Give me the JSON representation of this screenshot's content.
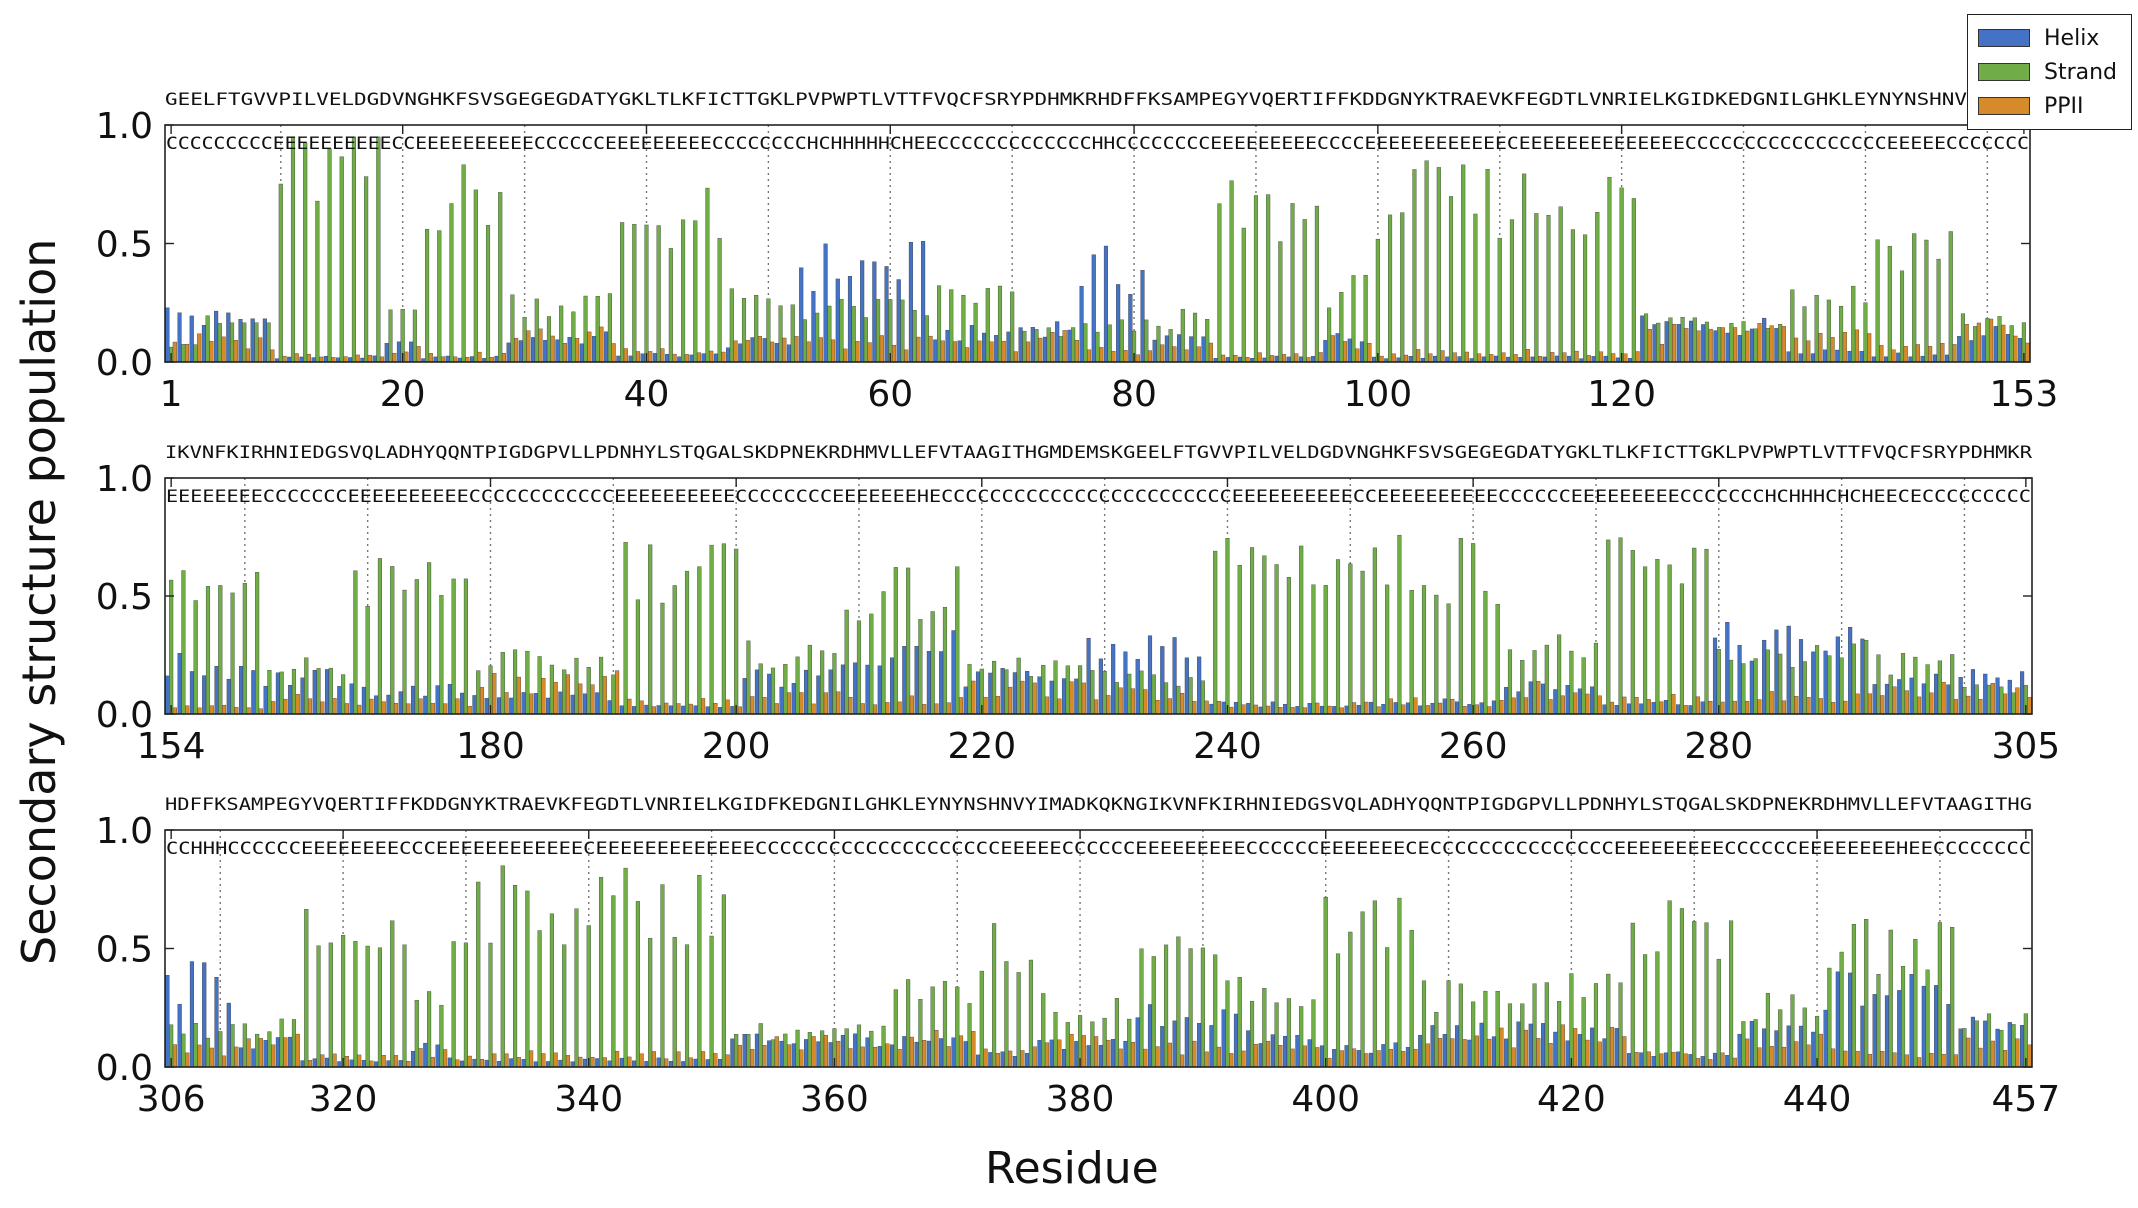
{
  "chart_data": {
    "type": "bar",
    "ylabel": "Secondary structure population",
    "xlabel": "Residue",
    "ylim": [
      0,
      1.0
    ],
    "yticks": [
      "0.0",
      "0.5",
      "1.0"
    ],
    "legend": {
      "placement": "top-right",
      "entries": [
        "Helix",
        "Strand",
        "PPII"
      ]
    },
    "colors": {
      "Helix": "#4472c4",
      "Strand": "#70ad47",
      "PPII": "#d68a2a"
    },
    "panels": [
      {
        "start": 1,
        "end": 153,
        "xticks": [
          "1",
          "20",
          "40",
          "60",
          "80",
          "100",
          "120",
          "153"
        ],
        "xtick_values": [
          1,
          20,
          40,
          60,
          80,
          100,
          120,
          153
        ],
        "sequence": "GEELFTGVVPILVELDGDVNGHKFSVSGEGEGDATYGKLTLKFICTTGKLPVPWPTLVTTFVQCFSRYPDHMKRHDFFKSAMPEGYVQERTIFFKDDGNYKTRAEVKFEGDTLVNRIELKGIDKEDGNILGHKLEYNYNSHNVYIMAD",
        "ss": "CCCCCCCCCEEEEEEEEEECCEEEEEEEEEECCCCCCEEEEEEEEECCCCCCCCHCHHHHHCHEECCCCCCCCCCCCCHHCCCCCCCCEEEEEEEEECCCCEEEEEEEEEEEECEEEEEEEEEEEEEECCCCCCCCCCCCCCCCCEEEEECCCCCCC",
        "segments": [
          {
            "s": 1,
            "e": 3,
            "type": "C",
            "h": 0.2,
            "st": 0.08,
            "pp": 0.09
          },
          {
            "s": 4,
            "e": 9,
            "type": "C",
            "h": 0.18,
            "st": 0.16,
            "pp": 0.08
          },
          {
            "s": 10,
            "e": 18,
            "type": "E",
            "h": 0.02,
            "st": 0.8,
            "pp": 0.03
          },
          {
            "s": 19,
            "e": 21,
            "type": "C",
            "h": 0.07,
            "st": 0.22,
            "pp": 0.06
          },
          {
            "s": 22,
            "e": 28,
            "type": "E",
            "h": 0.02,
            "st": 0.7,
            "pp": 0.03
          },
          {
            "s": 29,
            "e": 37,
            "type": "C",
            "h": 0.1,
            "st": 0.25,
            "pp": 0.11
          },
          {
            "s": 38,
            "e": 46,
            "type": "E",
            "h": 0.03,
            "st": 0.6,
            "pp": 0.05
          },
          {
            "s": 47,
            "e": 52,
            "type": "C",
            "h": 0.08,
            "st": 0.25,
            "pp": 0.1
          },
          {
            "s": 53,
            "e": 63,
            "type": "H",
            "h": 0.4,
            "st": 0.22,
            "pp": 0.08
          },
          {
            "s": 64,
            "e": 70,
            "type": "C",
            "h": 0.12,
            "st": 0.28,
            "pp": 0.07
          },
          {
            "s": 71,
            "e": 75,
            "type": "C",
            "h": 0.15,
            "st": 0.12,
            "pp": 0.1
          },
          {
            "s": 76,
            "e": 81,
            "type": "H",
            "h": 0.38,
            "st": 0.15,
            "pp": 0.05
          },
          {
            "s": 82,
            "e": 86,
            "type": "C",
            "h": 0.1,
            "st": 0.18,
            "pp": 0.06
          },
          {
            "s": 87,
            "e": 95,
            "type": "E",
            "h": 0.02,
            "st": 0.62,
            "pp": 0.03
          },
          {
            "s": 96,
            "e": 99,
            "type": "C",
            "h": 0.1,
            "st": 0.3,
            "pp": 0.08
          },
          {
            "s": 100,
            "e": 121,
            "type": "E",
            "h": 0.02,
            "st": 0.68,
            "pp": 0.04
          },
          {
            "s": 122,
            "e": 133,
            "type": "C",
            "h": 0.15,
            "st": 0.18,
            "pp": 0.12
          },
          {
            "s": 134,
            "e": 140,
            "type": "C",
            "h": 0.05,
            "st": 0.28,
            "pp": 0.1
          },
          {
            "s": 141,
            "e": 147,
            "type": "E",
            "h": 0.03,
            "st": 0.5,
            "pp": 0.06
          },
          {
            "s": 148,
            "e": 153,
            "type": "C",
            "h": 0.12,
            "st": 0.18,
            "pp": 0.13
          }
        ]
      },
      {
        "start": 154,
        "end": 305,
        "xticks": [
          "154",
          "180",
          "200",
          "220",
          "240",
          "260",
          "280",
          "305"
        ],
        "xtick_values": [
          154,
          180,
          200,
          220,
          240,
          260,
          280,
          305
        ],
        "sequence": "IKVNFKIRHNIEDGSVQLADHYQQNTPIGDGPVLLPDNHYLSTQGALSKDPNEKRDHMVLLEFVTAAGITHGMDEMSKGEELFTGVVPILVELDGDVNGHKFSVSGEGEGDATYGKLTLKFICTTGKLPVPWPTLVTTFVQCFSRYPDHMKR",
        "ss": "EEEEEEEECCCCCCCEEEEEEEEEECCCCCCCCCCCCEEEEEEEEEECCCCCCCCEEEEEEEHECCCCCCCCCCCCCCCCCCCCCCCCEEEEEEEEEECCEEEEEEEEEECCCCCCEEEEEEEEECCCCCCCHCHHHCHCHEECECCCCCCCCC",
        "segments": [
          {
            "s": 154,
            "e": 161,
            "type": "E",
            "h": 0.2,
            "st": 0.5,
            "pp": 0.03
          },
          {
            "s": 162,
            "e": 168,
            "type": "C",
            "h": 0.15,
            "st": 0.2,
            "pp": 0.06
          },
          {
            "s": 169,
            "e": 178,
            "type": "E",
            "h": 0.1,
            "st": 0.55,
            "pp": 0.05
          },
          {
            "s": 179,
            "e": 190,
            "type": "C",
            "h": 0.08,
            "st": 0.22,
            "pp": 0.14
          },
          {
            "s": 191,
            "e": 200,
            "type": "E",
            "h": 0.03,
            "st": 0.62,
            "pp": 0.05
          },
          {
            "s": 201,
            "e": 208,
            "type": "C",
            "h": 0.15,
            "st": 0.25,
            "pp": 0.07
          },
          {
            "s": 209,
            "e": 218,
            "type": "E",
            "h": 0.28,
            "st": 0.5,
            "pp": 0.06
          },
          {
            "s": 219,
            "e": 228,
            "type": "C",
            "h": 0.15,
            "st": 0.2,
            "pp": 0.1
          },
          {
            "s": 229,
            "e": 238,
            "type": "C",
            "h": 0.28,
            "st": 0.15,
            "pp": 0.08
          },
          {
            "s": 239,
            "e": 250,
            "type": "E",
            "h": 0.04,
            "st": 0.65,
            "pp": 0.04
          },
          {
            "s": 251,
            "e": 262,
            "type": "E",
            "h": 0.05,
            "st": 0.62,
            "pp": 0.05
          },
          {
            "s": 263,
            "e": 270,
            "type": "C",
            "h": 0.12,
            "st": 0.28,
            "pp": 0.1
          },
          {
            "s": 271,
            "e": 279,
            "type": "E",
            "h": 0.05,
            "st": 0.6,
            "pp": 0.06
          },
          {
            "s": 280,
            "e": 292,
            "type": "H",
            "h": 0.3,
            "st": 0.25,
            "pp": 0.07
          },
          {
            "s": 293,
            "e": 299,
            "type": "C",
            "h": 0.15,
            "st": 0.22,
            "pp": 0.1
          },
          {
            "s": 300,
            "e": 305,
            "type": "C",
            "h": 0.15,
            "st": 0.1,
            "pp": 0.1
          }
        ]
      },
      {
        "start": 306,
        "end": 457,
        "xticks": [
          "306",
          "320",
          "340",
          "360",
          "380",
          "400",
          "420",
          "440",
          "457"
        ],
        "xtick_values": [
          306,
          320,
          340,
          360,
          380,
          400,
          420,
          440,
          457
        ],
        "sequence": "HDFFKSAMPEGYVQERTIFFKDDGNYKTRAEVKFEGDTLVNRIELKGIDFKEDGNILGHKLEYNYNSHNVYIMADKQKNGIKVNFKIRHNIEDGSVQLADHYQQNTPIGDGPVLLPDNHYLSTQGALSKDPNEKRDHMVLLEFVTAAGITHG",
        "ss": "CCHHHCCCCCCEEEEEEEECCCEEEEEEEEEEEECEEEEEEEEEEEEECCCCCCCCCCCCCCCCCCCCEEEEECCCCCCEEEEEEEEECCCCCCEEEEEEECECCCCCCCCCCCCCCCEEEEEEEEECCCCCCEEEEEEEEHEECCCCCCCC",
        "segments": [
          {
            "s": 306,
            "e": 311,
            "type": "H",
            "h": 0.35,
            "st": 0.15,
            "pp": 0.07
          },
          {
            "s": 312,
            "e": 316,
            "type": "C",
            "h": 0.1,
            "st": 0.17,
            "pp": 0.1
          },
          {
            "s": 317,
            "e": 325,
            "type": "E",
            "h": 0.03,
            "st": 0.55,
            "pp": 0.04
          },
          {
            "s": 326,
            "e": 328,
            "type": "C",
            "h": 0.08,
            "st": 0.3,
            "pp": 0.06
          },
          {
            "s": 329,
            "e": 351,
            "type": "E",
            "h": 0.03,
            "st": 0.68,
            "pp": 0.05
          },
          {
            "s": 352,
            "e": 364,
            "type": "C",
            "h": 0.12,
            "st": 0.15,
            "pp": 0.1
          },
          {
            "s": 365,
            "e": 371,
            "type": "C",
            "h": 0.1,
            "st": 0.3,
            "pp": 0.12
          },
          {
            "s": 372,
            "e": 376,
            "type": "E",
            "h": 0.05,
            "st": 0.5,
            "pp": 0.08
          },
          {
            "s": 377,
            "e": 384,
            "type": "C",
            "h": 0.1,
            "st": 0.25,
            "pp": 0.1
          },
          {
            "s": 385,
            "e": 393,
            "type": "E",
            "h": 0.22,
            "st": 0.48,
            "pp": 0.08
          },
          {
            "s": 394,
            "e": 399,
            "type": "C",
            "h": 0.12,
            "st": 0.3,
            "pp": 0.08
          },
          {
            "s": 400,
            "e": 407,
            "type": "E",
            "h": 0.08,
            "st": 0.6,
            "pp": 0.06
          },
          {
            "s": 408,
            "e": 415,
            "type": "C",
            "h": 0.15,
            "st": 0.3,
            "pp": 0.12
          },
          {
            "s": 416,
            "e": 424,
            "type": "C",
            "h": 0.15,
            "st": 0.35,
            "pp": 0.13
          },
          {
            "s": 425,
            "e": 433,
            "type": "E",
            "h": 0.05,
            "st": 0.58,
            "pp": 0.05
          },
          {
            "s": 434,
            "e": 440,
            "type": "C",
            "h": 0.15,
            "st": 0.25,
            "pp": 0.1
          },
          {
            "s": 441,
            "e": 451,
            "type": "E",
            "h": 0.32,
            "st": 0.5,
            "pp": 0.06
          },
          {
            "s": 452,
            "e": 457,
            "type": "C",
            "h": 0.2,
            "st": 0.2,
            "pp": 0.1
          }
        ]
      }
    ]
  }
}
